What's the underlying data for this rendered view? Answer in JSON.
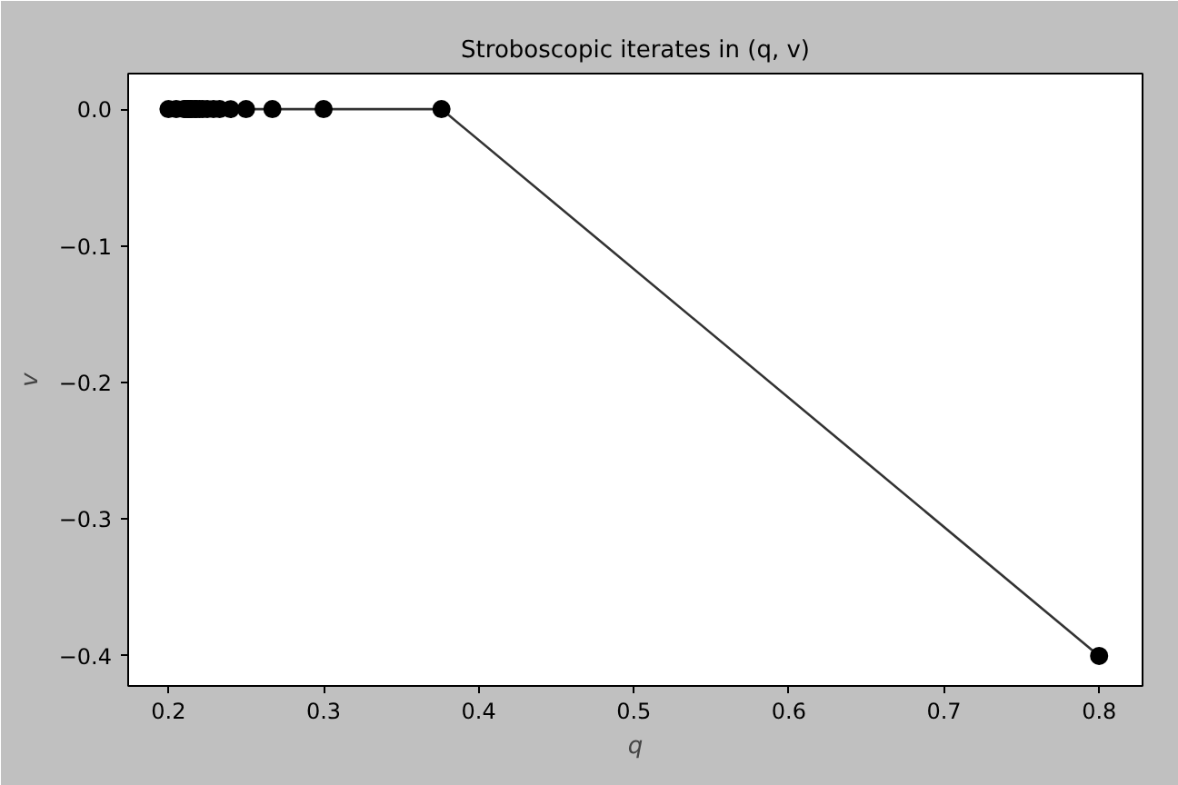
{
  "chart_data": {
    "type": "line",
    "title": "Stroboscopic iterates in (q, v)",
    "xlabel": "q",
    "ylabel": "v",
    "x": [
      0.8,
      0.376,
      0.3,
      0.267,
      0.25,
      0.24,
      0.233,
      0.229,
      0.225,
      0.222,
      0.22,
      0.218,
      0.217,
      0.215,
      0.214,
      0.213,
      0.2125,
      0.211,
      0.21,
      0.205,
      0.2
    ],
    "series": [
      {
        "color": "#000000",
        "values": [
          -0.4,
          0,
          0,
          0,
          0,
          0,
          0,
          0,
          0,
          0,
          0,
          0,
          0,
          0,
          0,
          0,
          0,
          0,
          0,
          0,
          0
        ]
      }
    ],
    "marker": "circle",
    "line_style": "solid",
    "grid": false,
    "xlim": [
      0.174,
      0.828
    ],
    "xticks": [
      0.2,
      0.3,
      0.4,
      0.5,
      0.6,
      0.7,
      0.8
    ],
    "ylim": [
      -0.422,
      0.026
    ],
    "yticks": [
      {
        "value": 0,
        "label": "0.0"
      },
      {
        "value": -0.1,
        "label": "−0.1"
      },
      {
        "value": -0.2,
        "label": "−0.2"
      },
      {
        "value": -0.3,
        "label": "−0.3"
      },
      {
        "value": -0.4,
        "label": "−0.4"
      }
    ]
  }
}
